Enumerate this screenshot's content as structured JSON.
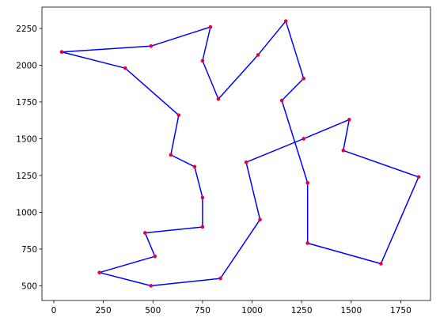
{
  "chart_data": {
    "type": "line",
    "title": "",
    "xlabel": "",
    "ylabel": "",
    "xlim": [
      -60,
      1900
    ],
    "ylim": [
      400,
      2395
    ],
    "x_ticks": [
      0,
      250,
      500,
      750,
      1000,
      1250,
      1500,
      1750
    ],
    "y_ticks": [
      500,
      750,
      1000,
      1250,
      1500,
      1750,
      2000,
      2250
    ],
    "grid": false,
    "line_color": "#0000ff",
    "marker_color": "#e8003d",
    "series": [
      {
        "x": [
          40,
          490,
          790,
          750,
          830,
          1030,
          1170,
          1260,
          1150,
          1280,
          1280,
          1650,
          1840,
          1460,
          1490,
          1260,
          970,
          1040,
          840,
          490,
          230,
          510,
          460,
          750,
          750,
          710,
          590,
          630,
          360,
          40
        ],
        "y": [
          2090,
          2130,
          2260,
          2030,
          1770,
          2070,
          2300,
          1910,
          1760,
          1200,
          790,
          650,
          1240,
          1420,
          1630,
          1500,
          1340,
          950,
          550,
          500,
          590,
          700,
          860,
          900,
          1100,
          1310,
          1390,
          1660,
          1980,
          2090
        ]
      }
    ]
  }
}
